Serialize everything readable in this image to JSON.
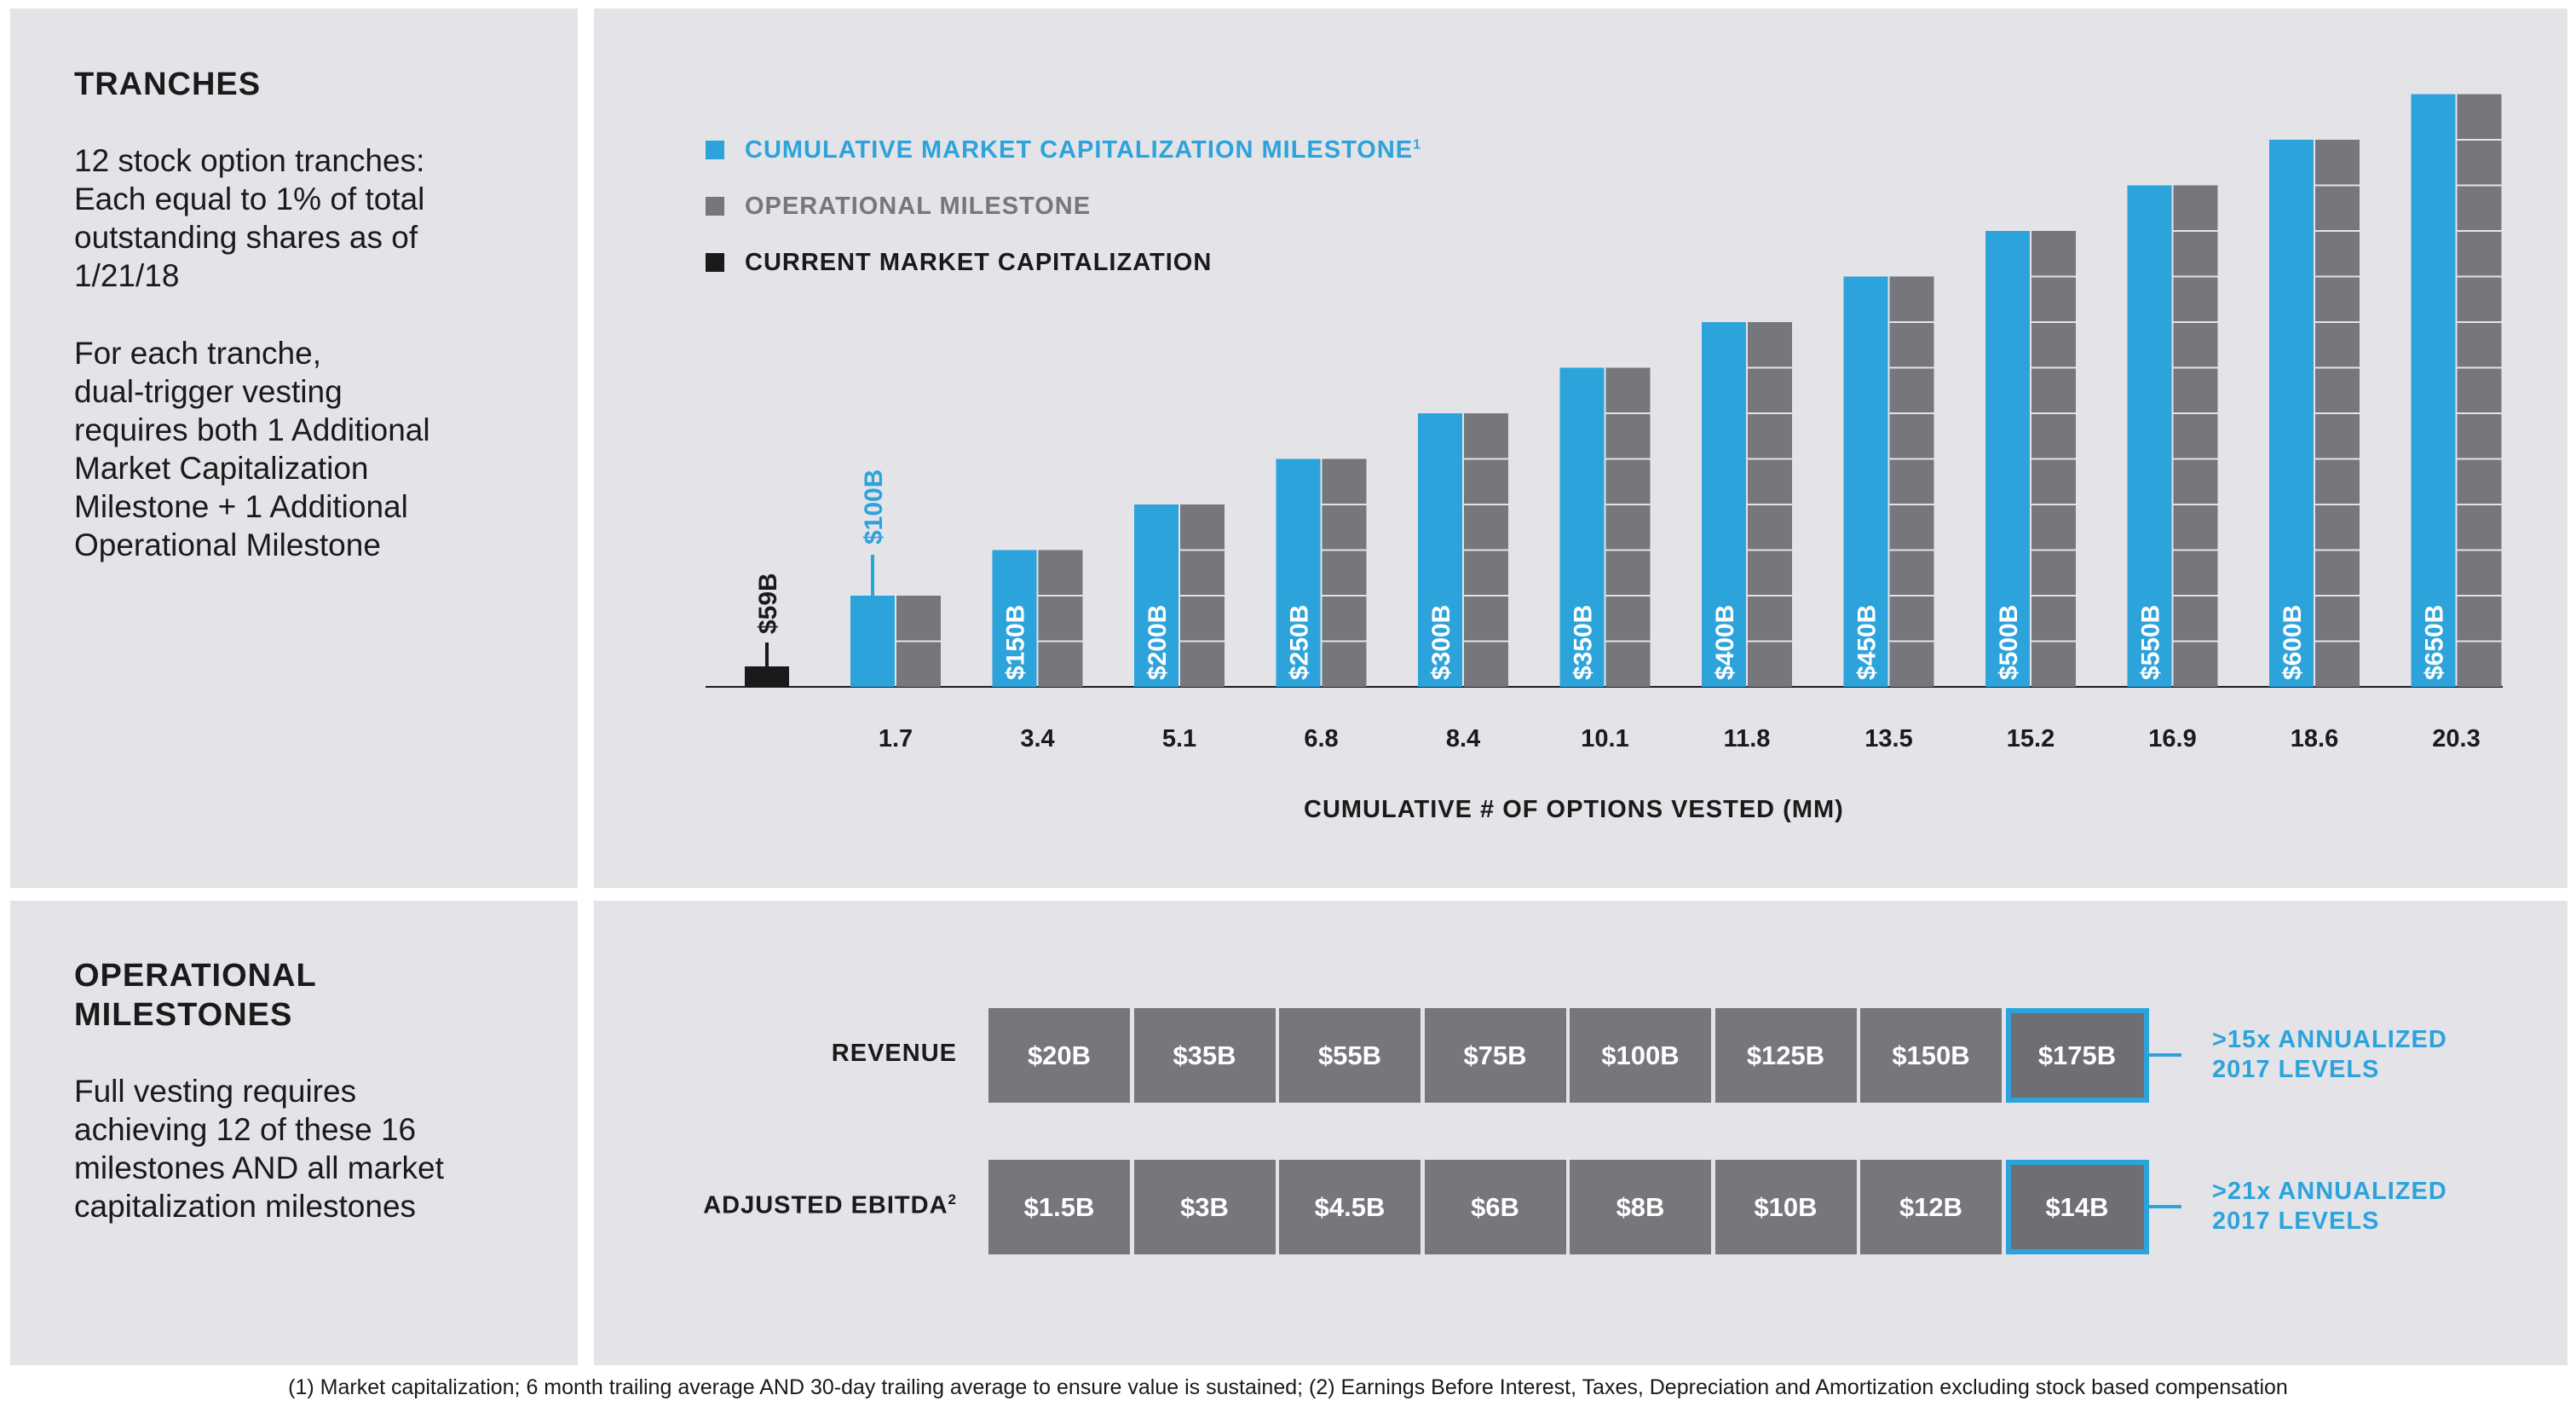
{
  "tranches": {
    "heading": "TRANCHES",
    "text1": "12 stock option tranches:\nEach equal to 1% of total\noutstanding shares as of\n1/21/18",
    "text2": "For each tranche,\ndual-trigger vesting\nrequires both 1 Additional\nMarket Capitalization\nMilestone + 1 Additional\nOperational Milestone"
  },
  "operational": {
    "heading": "OPERATIONAL\nMILESTONES",
    "text": "Full vesting requires\nachieving 12 of these 16\nmilestones AND all market\ncapitalization milestones"
  },
  "legend": [
    {
      "label": "CUMULATIVE MARKET CAPITALIZATION MILESTONE",
      "sup": "1",
      "color": "#2da3dc"
    },
    {
      "label": "OPERATIONAL MILESTONE",
      "sup": "",
      "color": "#76777c"
    },
    {
      "label": "CURRENT MARKET CAPITALIZATION",
      "sup": "",
      "color": "#1a1a1a"
    }
  ],
  "chart_data": {
    "type": "bar",
    "xlabel": "CUMULATIVE # OF OPTIONS VESTED (MM)",
    "current": {
      "label": "$59B",
      "value": 59,
      "color": "#1a1a1a"
    },
    "categories": [
      "1.7",
      "3.4",
      "5.1",
      "6.8",
      "8.4",
      "10.1",
      "11.8",
      "13.5",
      "15.2",
      "16.9",
      "18.6",
      "20.3"
    ],
    "series": [
      {
        "name": "CUMULATIVE MARKET CAPITALIZATION MILESTONE",
        "color": "#2da3dc",
        "values": [
          100,
          150,
          200,
          250,
          300,
          350,
          400,
          450,
          500,
          550,
          600,
          650
        ],
        "labels": [
          "$100B",
          "$150B",
          "$200B",
          "$250B",
          "$300B",
          "$350B",
          "$400B",
          "$450B",
          "$500B",
          "$550B",
          "$600B",
          "$650B"
        ]
      },
      {
        "name": "OPERATIONAL MILESTONE",
        "color": "#76777c",
        "values": [
          1,
          2,
          3,
          4,
          5,
          6,
          7,
          8,
          9,
          10,
          11,
          12
        ]
      }
    ],
    "grid": false,
    "legend_position": "top-left"
  },
  "milestones": {
    "revenue": {
      "label": "REVENUE",
      "values": [
        "$20B",
        "$35B",
        "$55B",
        "$75B",
        "$100B",
        "$125B",
        "$150B",
        "$175B"
      ],
      "note": ">15x ANNUALIZED\n2017 LEVELS"
    },
    "ebitda": {
      "label": "ADJUSTED EBITDA",
      "sup": "2",
      "values": [
        "$1.5B",
        "$3B",
        "$4.5B",
        "$6B",
        "$8B",
        "$10B",
        "$12B",
        "$14B"
      ],
      "note": ">21x ANNUALIZED\n2017 LEVELS"
    }
  },
  "footnote": "(1) Market capitalization; 6 month trailing average AND 30-day trailing average to ensure value is sustained; (2) Earnings Before Interest, Taxes, Depreciation and Amortization excluding stock based compensation"
}
